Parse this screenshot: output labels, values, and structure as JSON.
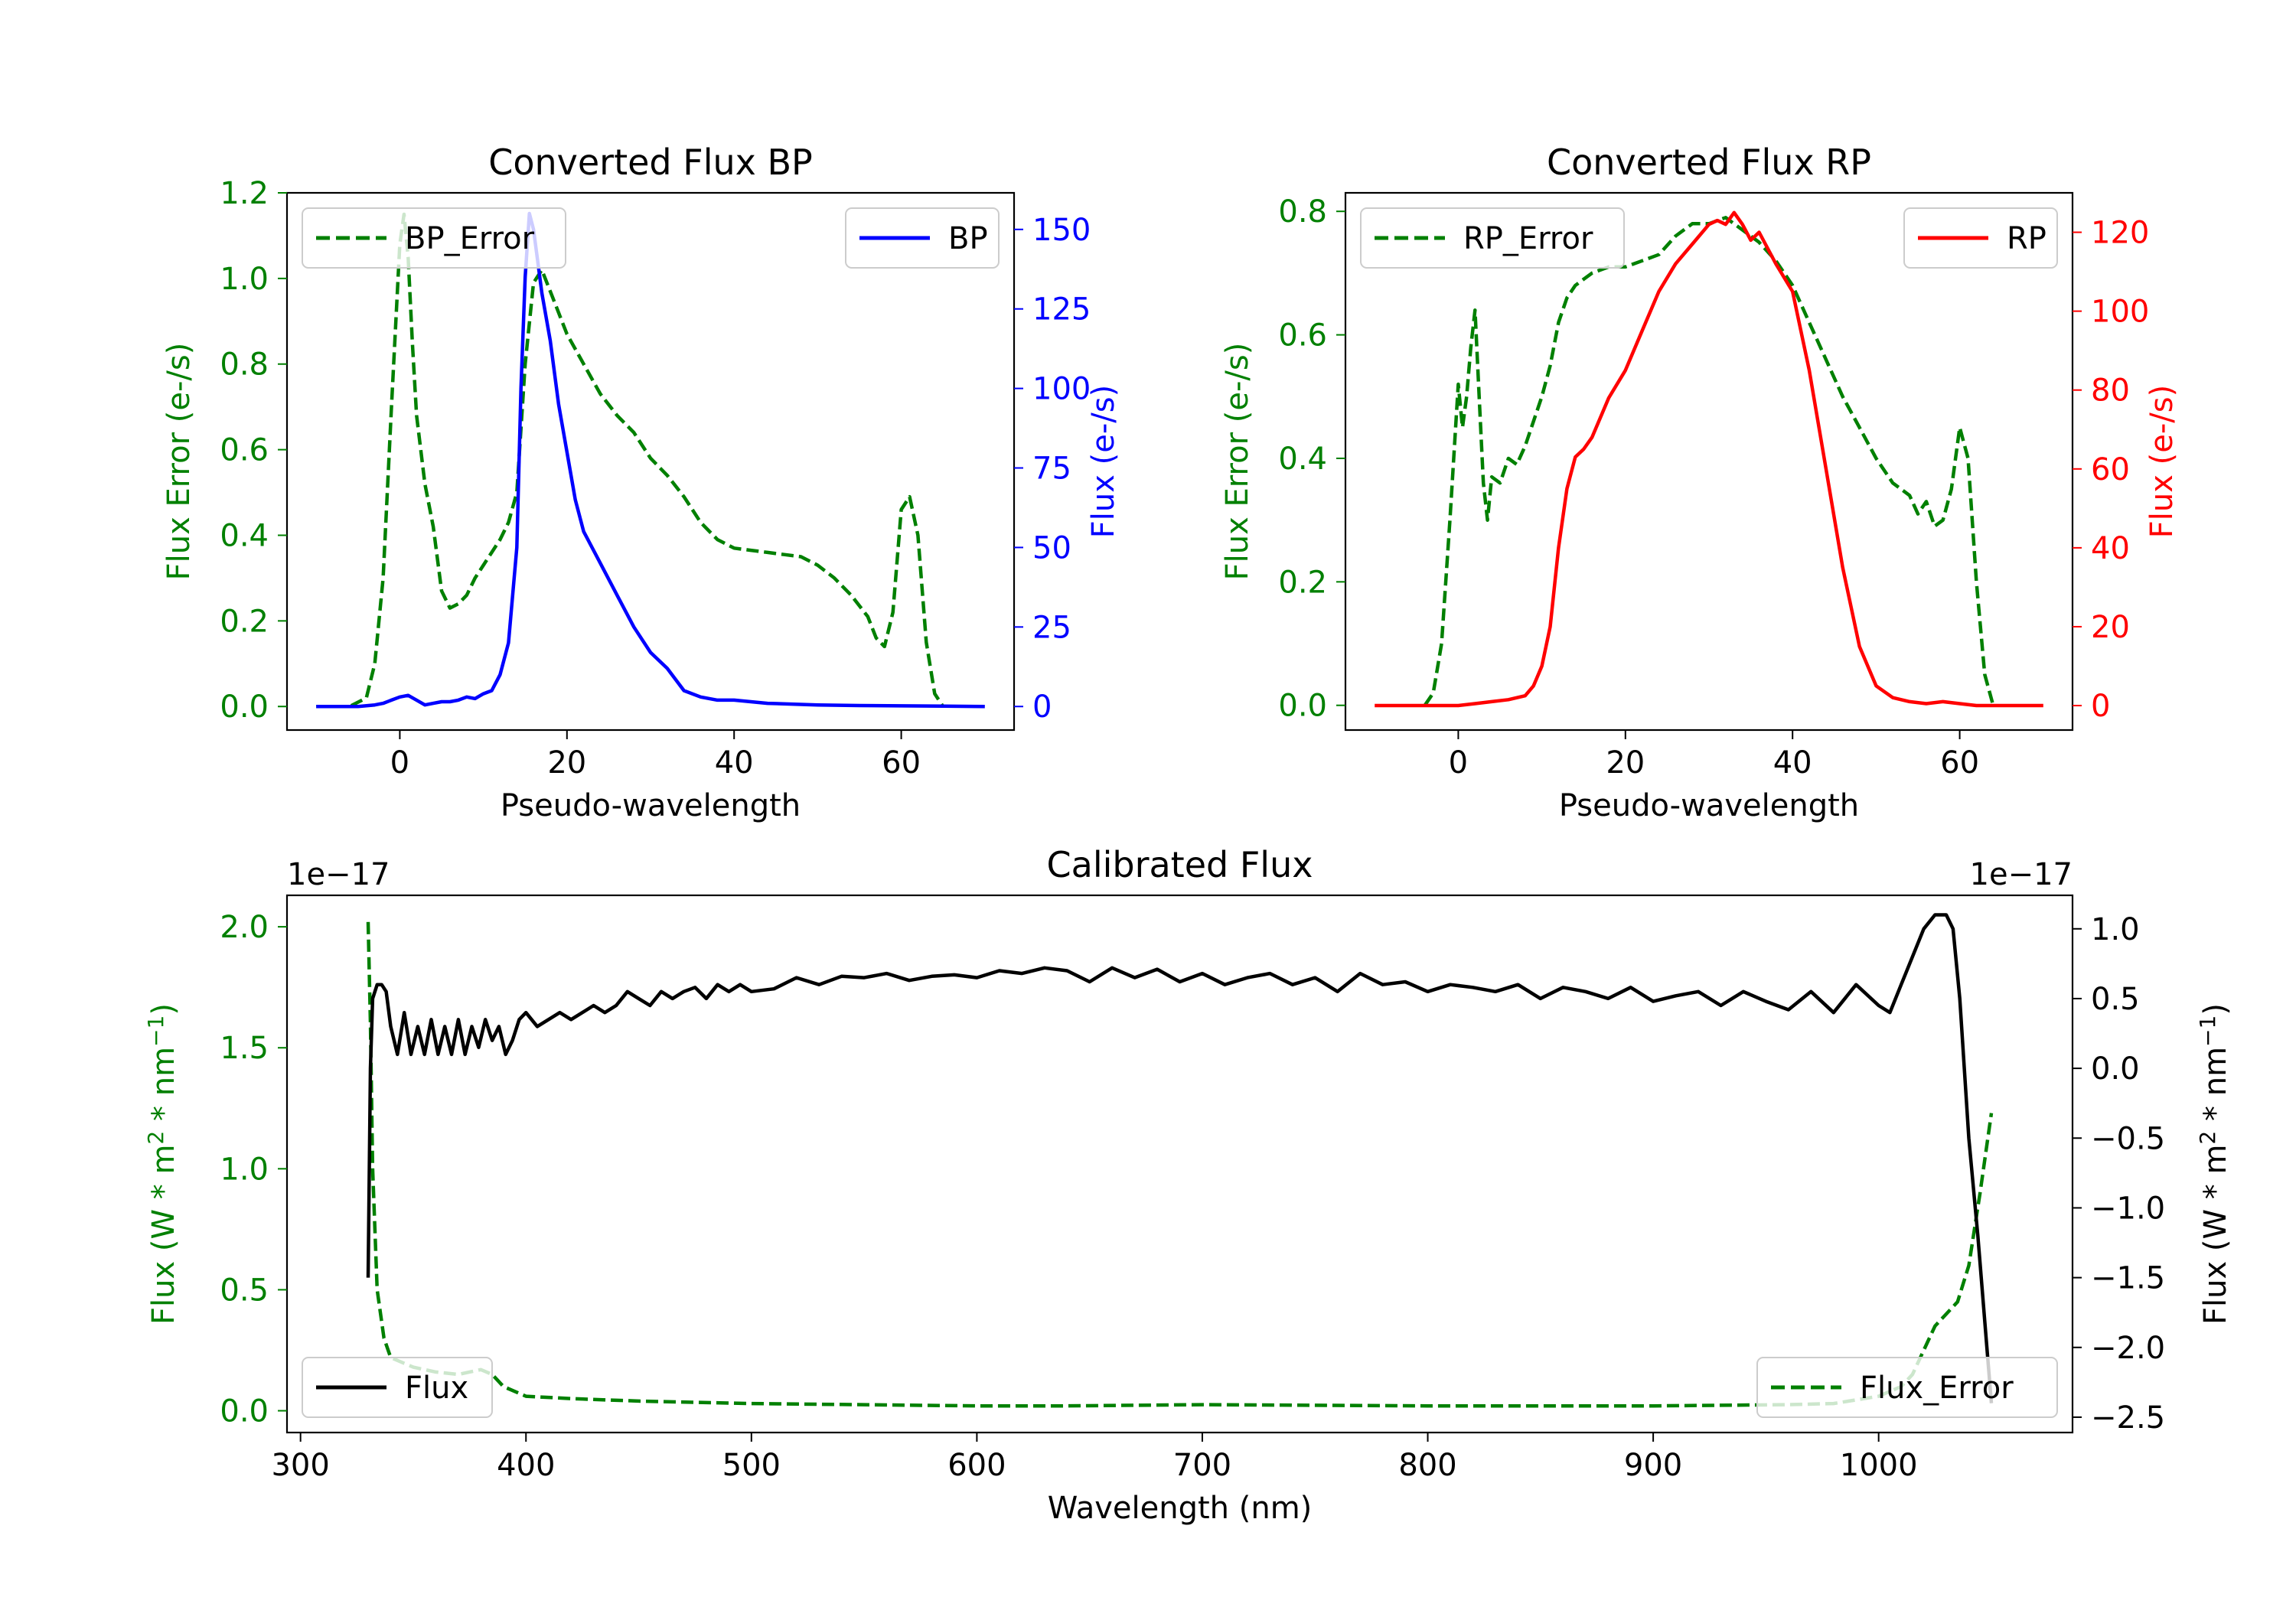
{
  "colors": {
    "green": "#008000",
    "blue": "#0000ff",
    "red": "#ff0000",
    "black": "#000000"
  },
  "chart_data": [
    {
      "id": "bp",
      "type": "line",
      "title": "Converted Flux BP",
      "xlabel": "Pseudo-wavelength",
      "ylabel_left": "Flux Error (e-/s)",
      "ylabel_right": "Flux (e-/s)",
      "xlim": [
        -13.5,
        73.5
      ],
      "ylim_left": [
        -0.055,
        1.2
      ],
      "ylim_right": [
        -7.4,
        161.5
      ],
      "xticks": [
        0,
        20,
        40,
        60
      ],
      "yticks_left": [
        0.0,
        0.2,
        0.4,
        0.6,
        0.8,
        1.0,
        1.2
      ],
      "yticks_left_labels": [
        "0.0",
        "0.2",
        "0.4",
        "0.6",
        "0.8",
        "1.0",
        "1.2"
      ],
      "yticks_right": [
        0,
        25,
        50,
        75,
        100,
        125,
        150
      ],
      "yticks_right_labels": [
        "0",
        "25",
        "50",
        "75",
        "100",
        "125",
        "150"
      ],
      "series": [
        {
          "name": "BP_Error",
          "axis": "left",
          "style": "dashed",
          "color": "#008000",
          "legend_pos": "top-left",
          "x": [
            -10,
            -6,
            -4,
            -3,
            -2,
            -1,
            0,
            0.5,
            1,
            1.5,
            2,
            3,
            4,
            5,
            6,
            7,
            8,
            9,
            10,
            11,
            12,
            13,
            14,
            15,
            16,
            17,
            18,
            19,
            20,
            22,
            24,
            26,
            28,
            30,
            32,
            34,
            36,
            38,
            40,
            42,
            44,
            46,
            48,
            50,
            52,
            54,
            56,
            57,
            58,
            59,
            60,
            61,
            62,
            63,
            64,
            65
          ],
          "y": [
            0,
            0,
            0.02,
            0.1,
            0.3,
            0.7,
            1.08,
            1.15,
            1.05,
            0.85,
            0.68,
            0.52,
            0.42,
            0.27,
            0.23,
            0.24,
            0.26,
            0.3,
            0.33,
            0.36,
            0.39,
            0.43,
            0.5,
            0.8,
            0.99,
            1.02,
            0.97,
            0.92,
            0.87,
            0.8,
            0.73,
            0.68,
            0.64,
            0.58,
            0.54,
            0.49,
            0.43,
            0.39,
            0.37,
            0.365,
            0.36,
            0.355,
            0.35,
            0.33,
            0.3,
            0.26,
            0.21,
            0.16,
            0.14,
            0.22,
            0.46,
            0.49,
            0.4,
            0.15,
            0.03,
            0
          ]
        },
        {
          "name": "BP",
          "axis": "right",
          "style": "solid",
          "color": "#0000ff",
          "legend_pos": "top-right",
          "x": [
            -10,
            -5,
            -3,
            -2,
            -1,
            0,
            1,
            2,
            3,
            4,
            5,
            6,
            7,
            8,
            9,
            10,
            11,
            12,
            13,
            14,
            14.5,
            15,
            15.5,
            16,
            16.5,
            17,
            18,
            19,
            20,
            21,
            22,
            24,
            26,
            28,
            30,
            32,
            34,
            36,
            38,
            40,
            44,
            50,
            55,
            60,
            65,
            70
          ],
          "y": [
            0,
            0,
            0.5,
            1,
            2,
            3,
            3.5,
            2,
            0.5,
            1,
            1.5,
            1.5,
            2,
            3,
            2.5,
            4,
            5,
            10,
            20,
            50,
            100,
            135,
            155,
            150,
            140,
            130,
            115,
            95,
            80,
            65,
            55,
            45,
            35,
            25,
            17,
            12,
            5,
            3,
            2,
            2,
            1,
            0.5,
            0.3,
            0.2,
            0.1,
            0
          ]
        }
      ]
    },
    {
      "id": "rp",
      "type": "line",
      "title": "Converted Flux RP",
      "xlabel": "Pseudo-wavelength",
      "ylabel_left": "Flux Error (e-/s)",
      "ylabel_right": "Flux (e-/s)",
      "xlim": [
        -13.5,
        73.5
      ],
      "ylim_left": [
        -0.04,
        0.83
      ],
      "ylim_right": [
        -6.2,
        130
      ],
      "xticks": [
        0,
        20,
        40,
        60
      ],
      "yticks_left": [
        0.0,
        0.2,
        0.4,
        0.6,
        0.8
      ],
      "yticks_left_labels": [
        "0.0",
        "0.2",
        "0.4",
        "0.6",
        "0.8"
      ],
      "yticks_right": [
        0,
        20,
        40,
        60,
        80,
        100,
        120
      ],
      "yticks_right_labels": [
        "0",
        "20",
        "40",
        "60",
        "80",
        "100",
        "120"
      ],
      "series": [
        {
          "name": "RP_Error",
          "axis": "left",
          "style": "dashed",
          "color": "#008000",
          "legend_pos": "top-left",
          "x": [
            -4,
            -3,
            -2,
            -1,
            0,
            0.5,
            1,
            1.5,
            2,
            2.5,
            3,
            3.5,
            4,
            5,
            6,
            7,
            8,
            9,
            10,
            11,
            12,
            13,
            14,
            16,
            18,
            20,
            22,
            24,
            26,
            28,
            30,
            32,
            34,
            36,
            38,
            40,
            42,
            44,
            46,
            48,
            50,
            52,
            54,
            55,
            56,
            57,
            58,
            59,
            60,
            61,
            62,
            63,
            64
          ],
          "y": [
            0,
            0.02,
            0.1,
            0.3,
            0.52,
            0.45,
            0.5,
            0.58,
            0.64,
            0.5,
            0.36,
            0.3,
            0.37,
            0.36,
            0.4,
            0.39,
            0.42,
            0.46,
            0.5,
            0.55,
            0.62,
            0.66,
            0.68,
            0.7,
            0.71,
            0.71,
            0.72,
            0.73,
            0.76,
            0.78,
            0.78,
            0.79,
            0.77,
            0.75,
            0.72,
            0.68,
            0.62,
            0.56,
            0.5,
            0.45,
            0.4,
            0.36,
            0.34,
            0.31,
            0.33,
            0.29,
            0.3,
            0.35,
            0.45,
            0.4,
            0.2,
            0.05,
            0
          ]
        },
        {
          "name": "RP",
          "axis": "right",
          "style": "solid",
          "color": "#ff0000",
          "legend_pos": "top-right",
          "x": [
            -10,
            -5,
            0,
            2,
            4,
            6,
            8,
            9,
            10,
            11,
            12,
            13,
            14,
            15,
            16,
            18,
            20,
            22,
            24,
            26,
            28,
            30,
            31,
            32,
            33,
            34,
            35,
            36,
            38,
            40,
            42,
            44,
            46,
            48,
            50,
            52,
            54,
            56,
            58,
            60,
            62,
            65,
            70
          ],
          "y": [
            0,
            0,
            0,
            0.5,
            1,
            1.5,
            2.5,
            5,
            10,
            20,
            40,
            55,
            63,
            65,
            68,
            78,
            85,
            95,
            105,
            112,
            117,
            122,
            123,
            122,
            125,
            122,
            118,
            120,
            112,
            105,
            85,
            60,
            35,
            15,
            5,
            2,
            1,
            0.5,
            1,
            0.5,
            0,
            0,
            0
          ]
        }
      ]
    },
    {
      "id": "calibrated",
      "type": "line",
      "title": "Calibrated Flux",
      "xlabel": "Wavelength (nm)",
      "ylabel_left": "Flux (W * m^2 * nm^-1)",
      "ylabel_right": "Flux (W * m^2 * nm^-1)",
      "offset_left": "1e−17",
      "offset_right": "1e−17",
      "xlim": [
        294,
        1086
      ],
      "ylim_left": [
        -0.09,
        2.13
      ],
      "ylim_right": [
        -2.61,
        1.24
      ],
      "xticks": [
        300,
        400,
        500,
        600,
        700,
        800,
        900,
        1000
      ],
      "yticks_left": [
        0.0,
        0.5,
        1.0,
        1.5,
        2.0
      ],
      "yticks_left_labels": [
        "0.0",
        "0.5",
        "1.0",
        "1.5",
        "2.0"
      ],
      "yticks_right": [
        -2.5,
        -2.0,
        -1.5,
        -1.0,
        -0.5,
        0.0,
        0.5,
        1.0
      ],
      "yticks_right_labels": [
        "−2.5",
        "−2.0",
        "−1.5",
        "−1.0",
        "−0.5",
        "0.0",
        "0.5",
        "1.0"
      ],
      "series": [
        {
          "name": "Flux_Error",
          "axis": "left",
          "style": "dashed",
          "color": "#008000",
          "legend_pos": "bottom-right",
          "x": [
            330,
            331,
            332,
            334,
            337,
            340,
            345,
            350,
            360,
            370,
            380,
            385,
            390,
            400,
            420,
            450,
            500,
            600,
            640,
            700,
            800,
            900,
            960,
            980,
            1000,
            1010,
            1015,
            1020,
            1025,
            1030,
            1035,
            1040,
            1045,
            1050
          ],
          "y": [
            2.02,
            1.6,
            1.0,
            0.5,
            0.3,
            0.22,
            0.2,
            0.18,
            0.16,
            0.15,
            0.17,
            0.15,
            0.1,
            0.06,
            0.05,
            0.04,
            0.03,
            0.02,
            0.02,
            0.025,
            0.02,
            0.02,
            0.025,
            0.03,
            0.06,
            0.1,
            0.15,
            0.25,
            0.35,
            0.4,
            0.45,
            0.6,
            0.9,
            1.23
          ]
        },
        {
          "name": "Flux",
          "axis": "right",
          "style": "solid",
          "color": "#000000",
          "legend_pos": "bottom-left",
          "x": [
            330,
            331,
            332,
            334,
            336,
            338,
            340,
            343,
            346,
            349,
            352,
            355,
            358,
            361,
            364,
            367,
            370,
            373,
            376,
            379,
            382,
            385,
            388,
            391,
            394,
            397,
            400,
            405,
            410,
            415,
            420,
            425,
            430,
            435,
            440,
            445,
            450,
            455,
            460,
            465,
            470,
            475,
            480,
            485,
            490,
            495,
            500,
            510,
            520,
            530,
            540,
            550,
            560,
            570,
            580,
            590,
            600,
            610,
            620,
            630,
            640,
            650,
            660,
            670,
            680,
            690,
            700,
            710,
            720,
            730,
            740,
            750,
            760,
            770,
            780,
            790,
            800,
            810,
            820,
            830,
            840,
            850,
            860,
            870,
            880,
            890,
            900,
            910,
            920,
            930,
            940,
            950,
            960,
            970,
            980,
            990,
            1000,
            1005,
            1010,
            1015,
            1020,
            1025,
            1030,
            1033,
            1036,
            1040,
            1044,
            1048,
            1050
          ],
          "y": [
            -1.5,
            0,
            0.5,
            0.6,
            0.6,
            0.55,
            0.3,
            0.1,
            0.4,
            0.1,
            0.3,
            0.1,
            0.35,
            0.1,
            0.3,
            0.1,
            0.35,
            0.1,
            0.3,
            0.15,
            0.35,
            0.2,
            0.3,
            0.1,
            0.2,
            0.35,
            0.4,
            0.3,
            0.35,
            0.4,
            0.35,
            0.4,
            0.45,
            0.4,
            0.45,
            0.55,
            0.5,
            0.45,
            0.55,
            0.5,
            0.55,
            0.58,
            0.5,
            0.6,
            0.55,
            0.6,
            0.55,
            0.57,
            0.65,
            0.6,
            0.66,
            0.65,
            0.68,
            0.63,
            0.66,
            0.67,
            0.65,
            0.7,
            0.68,
            0.72,
            0.7,
            0.62,
            0.72,
            0.65,
            0.71,
            0.62,
            0.68,
            0.6,
            0.65,
            0.68,
            0.6,
            0.65,
            0.55,
            0.68,
            0.6,
            0.62,
            0.55,
            0.6,
            0.58,
            0.55,
            0.6,
            0.5,
            0.58,
            0.55,
            0.5,
            0.58,
            0.48,
            0.52,
            0.55,
            0.45,
            0.55,
            0.48,
            0.42,
            0.55,
            0.4,
            0.6,
            0.45,
            0.4,
            0.6,
            0.8,
            1.0,
            1.1,
            1.1,
            1.0,
            0.5,
            -0.5,
            -1.2,
            -2.0,
            -2.4
          ]
        }
      ]
    }
  ]
}
